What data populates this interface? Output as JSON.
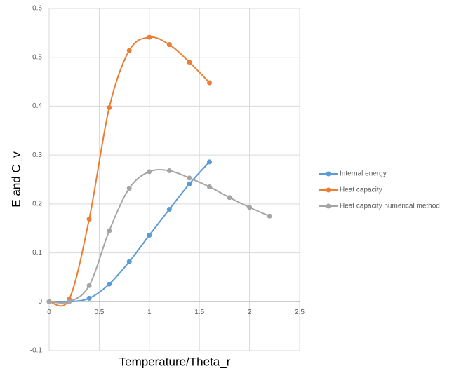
{
  "chart_data": {
    "type": "line",
    "x_label": "Temperature/Theta_r",
    "y_label": "E and C_v",
    "x": [
      0,
      0.2,
      0.4,
      0.6,
      0.8,
      1,
      1.2,
      1.4,
      1.6,
      1.8,
      2,
      2.2
    ],
    "series": [
      {
        "name": "Internal energy",
        "color": "#5b9bd5",
        "values": [
          0,
          0,
          0.007,
          0.036,
          0.082,
          0.136,
          0.189,
          0.241,
          0.286,
          null,
          null,
          null
        ]
      },
      {
        "name": "Heat capacity",
        "color": "#ed7d31",
        "values": [
          0,
          0.005,
          0.169,
          0.397,
          0.514,
          0.541,
          0.526,
          0.49,
          0.448,
          null,
          null,
          null
        ]
      },
      {
        "name": "Heat capacity numerical method",
        "color": "#a5a5a5",
        "values": [
          0,
          0,
          0.033,
          0.145,
          0.232,
          0.266,
          0.268,
          0.253,
          0.235,
          0.213,
          0.193,
          0.175
        ]
      }
    ],
    "xlim": [
      0,
      2.5
    ],
    "xticks": [
      0,
      0.5,
      1,
      1.5,
      2,
      2.5
    ],
    "ylim": [
      -0.1,
      0.6
    ],
    "yticks": [
      -0.1,
      0,
      0.1,
      0.2,
      0.3,
      0.4,
      0.5,
      0.6
    ],
    "grid": true,
    "smooth": true,
    "legend": "right"
  }
}
